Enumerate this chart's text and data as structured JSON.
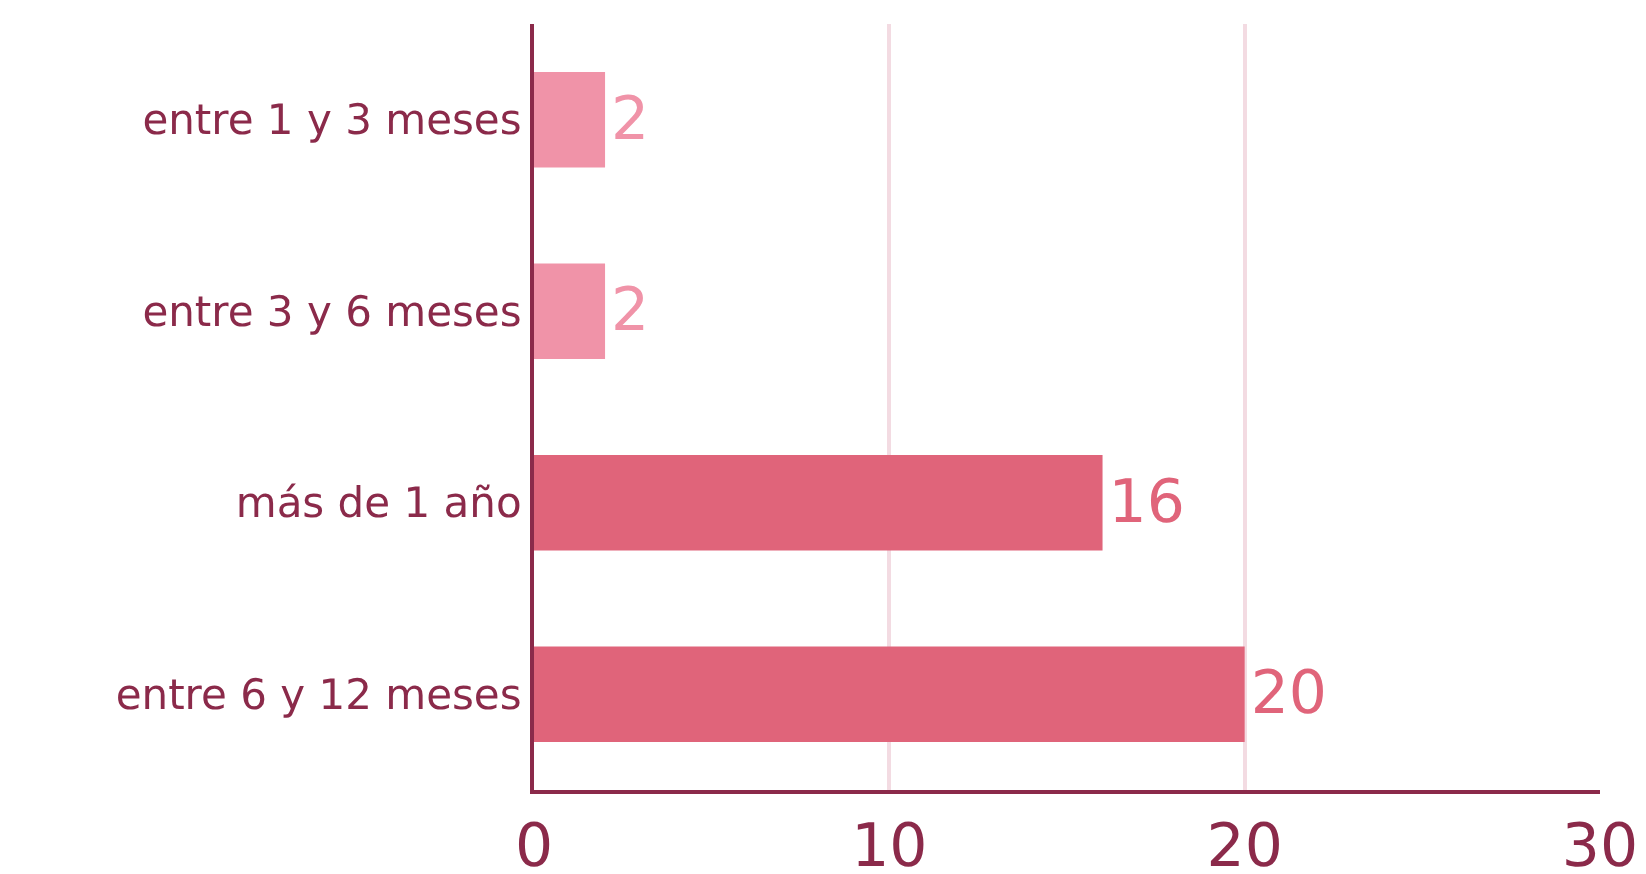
{
  "chart_data": {
    "type": "bar",
    "orientation": "horizontal",
    "categories": [
      "entre 1 y 3 meses",
      "entre 3 y 6 meses",
      "más de 1 año",
      "entre 6 y 12 meses"
    ],
    "values": [
      2,
      2,
      16,
      20
    ],
    "colors": [
      "#f093a8",
      "#f093a8",
      "#e0647a",
      "#e0647a"
    ],
    "xlim": [
      0,
      30
    ],
    "xticks": [
      0,
      10,
      20,
      30
    ],
    "grid": "x",
    "data_labels": true,
    "legend": false
  }
}
